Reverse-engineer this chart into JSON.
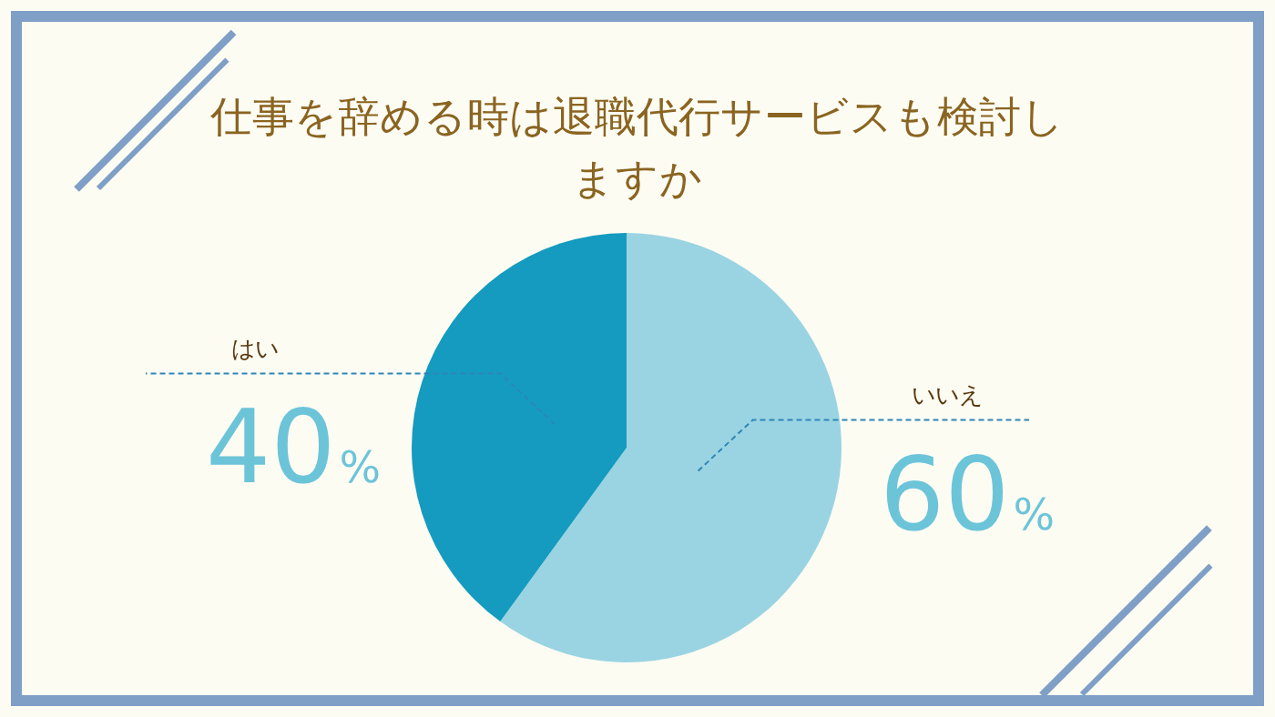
{
  "chart_data": {
    "type": "pie",
    "title": "仕事を辞める時は退職代行サービスも検討しますか",
    "categories": [
      "いいえ",
      "はい"
    ],
    "values": [
      60,
      40
    ],
    "colors": [
      "#9ad4e2",
      "#149bbf"
    ],
    "value_labels": [
      "60%",
      "40%"
    ],
    "legend": false
  }
}
